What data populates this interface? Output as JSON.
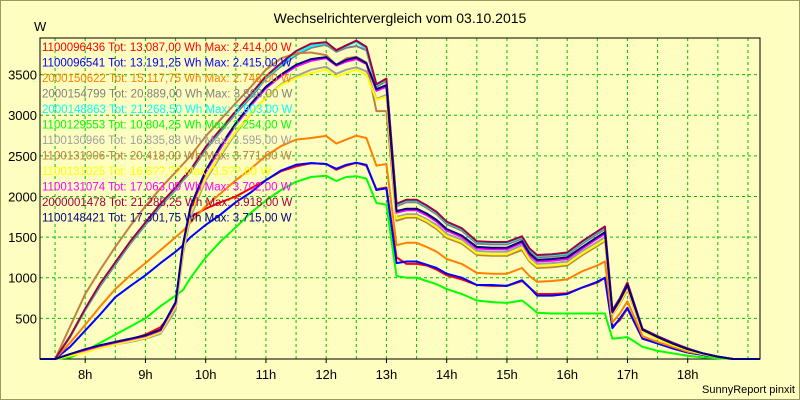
{
  "chart_data": {
    "type": "line",
    "title": "Wechselrichtervergleich vom 03.10.2015",
    "ylabel": "W",
    "xlabel": "",
    "footer": "SunnyReport pinxit",
    "ylim": [
      0,
      3950
    ],
    "xlim": [
      7.25,
      19.2
    ],
    "grid": true,
    "legend_position": "top-left",
    "x_tick_labels": [
      "8h",
      "9h",
      "10h",
      "11h",
      "12h",
      "13h",
      "14h",
      "15h",
      "16h",
      "17h",
      "18h"
    ],
    "x_ticks": [
      8,
      9,
      10,
      11,
      12,
      13,
      14,
      15,
      16,
      17,
      18
    ],
    "y_ticks": [
      500,
      1000,
      1500,
      2000,
      2500,
      3000,
      3500
    ],
    "y_tick_labels": [
      "500",
      "1000",
      "1500",
      "2000",
      "2500",
      "3000",
      "3500"
    ],
    "x": [
      7.25,
      7.5,
      7.75,
      8,
      8.25,
      8.5,
      8.75,
      9,
      9.25,
      9.5,
      9.625,
      9.75,
      10,
      10.25,
      10.5,
      10.75,
      11,
      11.25,
      11.5,
      11.75,
      12,
      12.167,
      12.333,
      12.5,
      12.667,
      12.833,
      13,
      13.167,
      13.333,
      13.5,
      13.667,
      13.833,
      14,
      14.25,
      14.5,
      14.75,
      15,
      15.25,
      15.375,
      15.5,
      15.75,
      16,
      16.25,
      16.5,
      16.625,
      16.75,
      16.875,
      17,
      17.25,
      17.5,
      17.75,
      18,
      18.25,
      18.5,
      18.75,
      19.2
    ],
    "series": [
      {
        "id": "1100096436",
        "total": "Tot: 13.087,00 Wh",
        "max": "Max: 2.414,00 W",
        "color": "#ff0000",
        "values": [
          0,
          0,
          40,
          90,
          150,
          190,
          240,
          300,
          390,
          620,
          1400,
          1750,
          1850,
          1930,
          2000,
          2100,
          2200,
          2310,
          2370,
          2410,
          2400,
          2330,
          2380,
          2414,
          2380,
          2090,
          2110,
          1250,
          1170,
          1170,
          1150,
          1100,
          1030,
          980,
          910,
          900,
          900,
          960,
          880,
          800,
          800,
          810,
          880,
          940,
          1000,
          400,
          480,
          620,
          250,
          200,
          130,
          80,
          50,
          20,
          0,
          0
        ]
      },
      {
        "id": "1100096541",
        "total": "Tot: 13.191,25 Wh",
        "max": "Max: 2.415,00 W",
        "color": "#0000ff",
        "values": [
          0,
          0,
          150,
          350,
          550,
          760,
          900,
          1030,
          1180,
          1320,
          1400,
          1500,
          1650,
          1780,
          1930,
          2050,
          2200,
          2320,
          2390,
          2410,
          2400,
          2340,
          2390,
          2415,
          2390,
          2080,
          2100,
          1180,
          1200,
          1200,
          1160,
          1120,
          1050,
          1000,
          910,
          910,
          900,
          970,
          880,
          780,
          780,
          800,
          880,
          950,
          1000,
          380,
          500,
          630,
          250,
          190,
          130,
          80,
          50,
          20,
          0,
          0
        ]
      },
      {
        "id": "2000150622",
        "total": "Tot: 15.117,75 Wh",
        "max": "Max: 2.748,00 W",
        "color": "#ff8000",
        "values": [
          0,
          0,
          200,
          420,
          650,
          860,
          1030,
          1180,
          1340,
          1500,
          1580,
          1680,
          1880,
          2040,
          2200,
          2340,
          2500,
          2620,
          2700,
          2720,
          2745,
          2650,
          2700,
          2748,
          2720,
          2380,
          2400,
          1400,
          1430,
          1430,
          1380,
          1320,
          1230,
          1170,
          1060,
          1050,
          1050,
          1120,
          1020,
          950,
          960,
          980,
          1080,
          1150,
          1200,
          450,
          560,
          710,
          280,
          210,
          150,
          90,
          60,
          20,
          0,
          0
        ]
      },
      {
        "id": "2000154799",
        "total": "Tot: 20.889,00 Wh",
        "max": "Max: 3.868,00 W",
        "color": "#808080",
        "values": [
          0,
          0,
          270,
          600,
          900,
          1160,
          1420,
          1650,
          1880,
          2080,
          2200,
          2300,
          2580,
          2800,
          3020,
          3220,
          3450,
          3600,
          3740,
          3830,
          3868,
          3780,
          3830,
          3850,
          3800,
          3350,
          3420,
          1880,
          1930,
          1930,
          1860,
          1780,
          1660,
          1580,
          1420,
          1410,
          1410,
          1480,
          1330,
          1250,
          1260,
          1280,
          1420,
          1540,
          1600,
          580,
          730,
          920,
          360,
          270,
          190,
          120,
          70,
          30,
          0,
          0
        ]
      },
      {
        "id": "2000148863",
        "total": "Tot: 21.268,50 Wh",
        "max": "Max: 3.903,00 W",
        "color": "#00ffff",
        "values": [
          0,
          0,
          280,
          610,
          920,
          1180,
          1440,
          1670,
          1900,
          2100,
          2220,
          2320,
          2600,
          2820,
          3040,
          3240,
          3460,
          3620,
          3760,
          3850,
          3890,
          3800,
          3850,
          3903,
          3820,
          3370,
          3440,
          1900,
          1950,
          1950,
          1880,
          1800,
          1680,
          1600,
          1440,
          1430,
          1430,
          1500,
          1350,
          1270,
          1280,
          1300,
          1440,
          1560,
          1620,
          590,
          740,
          930,
          370,
          280,
          200,
          130,
          70,
          30,
          0,
          0
        ]
      },
      {
        "id": "1100129553",
        "total": "Tot: 10.804,25 Wh",
        "max": "Max: 2.254,00 W",
        "color": "#00ff00",
        "values": [
          0,
          0,
          20,
          100,
          200,
          300,
          400,
          500,
          650,
          780,
          850,
          1000,
          1250,
          1450,
          1620,
          1800,
          1950,
          2080,
          2180,
          2240,
          2254,
          2190,
          2240,
          2250,
          2220,
          1920,
          1900,
          1020,
          1000,
          1000,
          960,
          920,
          860,
          800,
          720,
          700,
          690,
          720,
          650,
          570,
          560,
          560,
          560,
          560,
          560,
          250,
          260,
          270,
          150,
          100,
          70,
          40,
          20,
          10,
          0,
          0
        ]
      },
      {
        "id": "1100130966",
        "total": "Tot: 16.835,88 Wh",
        "max": "Max: 3.595,00 W",
        "color": "#a0a0a0",
        "values": [
          0,
          0,
          50,
          100,
          140,
          180,
          210,
          250,
          310,
          600,
          1300,
          1750,
          2200,
          2500,
          2780,
          3020,
          3220,
          3380,
          3480,
          3560,
          3595,
          3510,
          3560,
          3590,
          3540,
          3200,
          3250,
          1750,
          1780,
          1780,
          1720,
          1650,
          1540,
          1470,
          1330,
          1320,
          1320,
          1400,
          1250,
          1170,
          1180,
          1200,
          1330,
          1440,
          1500,
          560,
          700,
          880,
          350,
          260,
          180,
          110,
          60,
          30,
          0,
          0
        ]
      },
      {
        "id": "1100131006",
        "total": "Tot: 20.418,00 Wh",
        "max": "Max: 3.771,00 W",
        "color": "#c08040",
        "values": [
          0,
          0,
          400,
          800,
          1100,
          1380,
          1640,
          1880,
          2100,
          2300,
          2400,
          2500,
          2740,
          2950,
          3150,
          3350,
          3560,
          3700,
          3760,
          3771,
          3740,
          3620,
          3700,
          3720,
          3650,
          3050,
          3050,
          1700,
          1740,
          1740,
          1680,
          1600,
          1490,
          1420,
          1280,
          1270,
          1270,
          1340,
          1200,
          1120,
          1130,
          1150,
          1280,
          1390,
          1450,
          540,
          680,
          850,
          340,
          250,
          170,
          110,
          60,
          30,
          0,
          0
        ]
      },
      {
        "id": "1100131025",
        "total": "Tot: 16.6??,??",
        "max": "Max: 3.5??,00 W",
        "color": "#ffff00",
        "values": [
          0,
          0,
          40,
          80,
          140,
          180,
          220,
          260,
          330,
          650,
          1350,
          1800,
          2230,
          2530,
          2800,
          3020,
          3220,
          3370,
          3460,
          3520,
          3560,
          3470,
          3520,
          3560,
          3500,
          3190,
          3230,
          1730,
          1760,
          1760,
          1700,
          1620,
          1510,
          1440,
          1300,
          1290,
          1290,
          1370,
          1220,
          1140,
          1150,
          1170,
          1300,
          1410,
          1470,
          550,
          690,
          870,
          340,
          250,
          170,
          110,
          60,
          30,
          0,
          0
        ]
      },
      {
        "id": "1100131074",
        "total": "Tot: 17.063,00 Wh",
        "max": "Max: 3.702,00 W",
        "color": "#ff00ff",
        "values": [
          0,
          0,
          60,
          110,
          160,
          200,
          240,
          280,
          350,
          680,
          1400,
          1850,
          2300,
          2600,
          2880,
          3120,
          3330,
          3480,
          3600,
          3670,
          3702,
          3610,
          3660,
          3690,
          3630,
          3300,
          3350,
          1800,
          1830,
          1830,
          1770,
          1690,
          1580,
          1500,
          1360,
          1350,
          1350,
          1430,
          1280,
          1200,
          1210,
          1230,
          1360,
          1480,
          1540,
          570,
          720,
          900,
          360,
          270,
          190,
          120,
          70,
          30,
          0,
          0
        ]
      },
      {
        "id": "2000001478",
        "total": "Tot: 21.285,25 Wh",
        "max": "Max: 3.918,00 W",
        "color": "#a00040",
        "values": [
          0,
          0,
          280,
          620,
          930,
          1190,
          1450,
          1680,
          1910,
          2110,
          2230,
          2330,
          2610,
          2830,
          3050,
          3260,
          3480,
          3640,
          3790,
          3880,
          3900,
          3800,
          3860,
          3918,
          3840,
          3380,
          3450,
          1910,
          1960,
          1960,
          1890,
          1810,
          1690,
          1610,
          1450,
          1440,
          1440,
          1510,
          1360,
          1280,
          1290,
          1310,
          1450,
          1570,
          1630,
          600,
          750,
          940,
          370,
          280,
          200,
          130,
          70,
          30,
          0,
          0
        ]
      },
      {
        "id": "1100148421",
        "total": "Tot: 17.301,75 Wh",
        "max": "Max: 3.715,00 W",
        "color": "#000080",
        "values": [
          0,
          0,
          60,
          120,
          170,
          210,
          250,
          290,
          360,
          700,
          1420,
          1880,
          2320,
          2630,
          2900,
          3140,
          3350,
          3500,
          3620,
          3690,
          3715,
          3620,
          3680,
          3710,
          3640,
          3320,
          3370,
          1820,
          1850,
          1850,
          1790,
          1710,
          1600,
          1520,
          1380,
          1370,
          1370,
          1450,
          1300,
          1220,
          1230,
          1250,
          1380,
          1500,
          1560,
          580,
          730,
          910,
          360,
          270,
          190,
          120,
          70,
          30,
          0,
          0
        ]
      }
    ]
  }
}
